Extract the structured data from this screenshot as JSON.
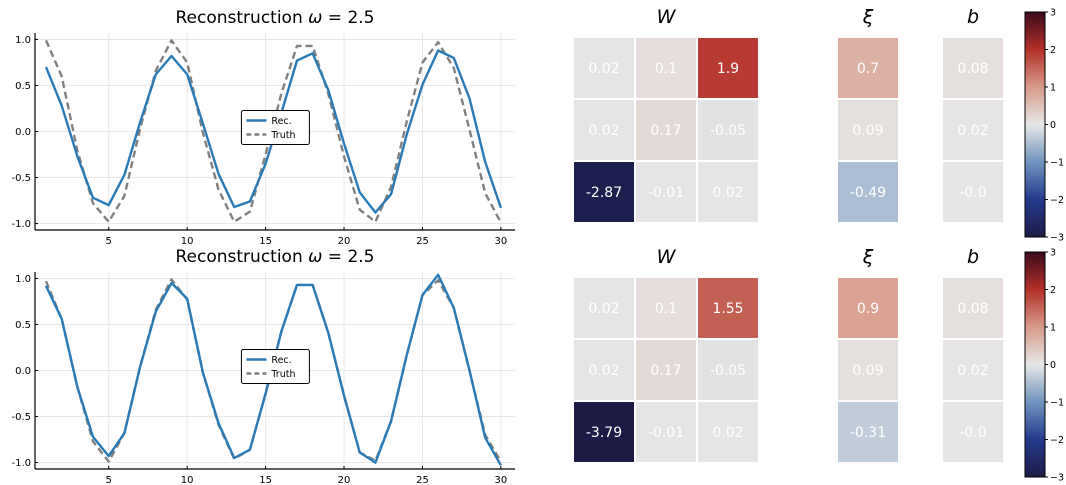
{
  "colors": {
    "rec": "#2a7ab7",
    "truth": "#808080",
    "grid": "#e8e8e8",
    "axis": "#000000",
    "cell_text": "#ffffff",
    "colorbar_stops": [
      "#1c1b46",
      "#243a8c",
      "#6f95c0",
      "#e6e6e6",
      "#d79a88",
      "#b3302a",
      "#3c0a1a"
    ]
  },
  "chart_data": [
    {
      "type": "line",
      "title": "Reconstruction ω = 2.5",
      "title_parts": [
        "Reconstruction ",
        "ω",
        " = 2.5"
      ],
      "xlim": [
        0.3,
        30.9
      ],
      "ylim": [
        -1.07,
        1.07
      ],
      "xticks": [
        5,
        10,
        15,
        20,
        25,
        30
      ],
      "xtick_labels": [
        "5",
        "10",
        "15",
        "20",
        "25",
        "30"
      ],
      "yticks": [
        -1.0,
        -0.5,
        0.0,
        0.5,
        1.0
      ],
      "ytick_labels": [
        "-1.0",
        "-0.5",
        "0.0",
        "0.5",
        "1.0"
      ],
      "grid": true,
      "legend_position": "center",
      "x": [
        1,
        2,
        3,
        4,
        5,
        6,
        7,
        8,
        9,
        10,
        11,
        12,
        13,
        14,
        15,
        16,
        17,
        18,
        19,
        20,
        21,
        22,
        23,
        24,
        25,
        26,
        27,
        28,
        29,
        30
      ],
      "series": [
        {
          "name": "Rec.",
          "style": "solid",
          "values": [
            0.7,
            0.28,
            -0.27,
            -0.72,
            -0.8,
            -0.47,
            0.1,
            0.62,
            0.82,
            0.62,
            0.09,
            -0.46,
            -0.82,
            -0.76,
            -0.35,
            0.2,
            0.77,
            0.85,
            0.45,
            -0.13,
            -0.66,
            -0.88,
            -0.68,
            -0.03,
            0.51,
            0.88,
            0.8,
            0.36,
            -0.33,
            -0.83
          ]
        },
        {
          "name": "Truth",
          "style": "dashed",
          "values": [
            0.99,
            0.6,
            -0.21,
            -0.78,
            -0.98,
            -0.7,
            0.03,
            0.66,
            0.99,
            0.75,
            -0.01,
            -0.63,
            -0.98,
            -0.87,
            -0.25,
            0.41,
            0.93,
            0.93,
            0.41,
            -0.27,
            -0.85,
            -0.98,
            -0.6,
            0.11,
            0.75,
            0.97,
            0.69,
            0.02,
            -0.67,
            -0.99
          ]
        }
      ]
    },
    {
      "type": "line",
      "title": "Reconstruction ω = 2.5",
      "title_parts": [
        "Reconstruction ",
        "ω",
        " = 2.5"
      ],
      "xlim": [
        0.3,
        30.9
      ],
      "ylim": [
        -1.07,
        1.07
      ],
      "xticks": [
        5,
        10,
        15,
        20,
        25,
        30
      ],
      "xtick_labels": [
        "5",
        "10",
        "15",
        "20",
        "25",
        "30"
      ],
      "yticks": [
        -1.0,
        -0.5,
        0.0,
        0.5,
        1.0
      ],
      "ytick_labels": [
        "-1.0",
        "-0.5",
        "0.0",
        "0.5",
        "1.0"
      ],
      "grid": true,
      "legend_position": "center",
      "x": [
        1,
        2,
        3,
        4,
        5,
        6,
        7,
        8,
        9,
        10,
        11,
        12,
        13,
        14,
        15,
        16,
        17,
        18,
        19,
        20,
        21,
        22,
        23,
        24,
        25,
        26,
        27,
        28,
        29,
        30
      ],
      "series": [
        {
          "name": "Rec.",
          "style": "solid",
          "values": [
            0.92,
            0.56,
            -0.18,
            -0.72,
            -0.93,
            -0.68,
            0.04,
            0.64,
            0.95,
            0.78,
            -0.02,
            -0.57,
            -0.95,
            -0.86,
            -0.25,
            0.42,
            0.93,
            0.93,
            0.41,
            -0.27,
            -0.89,
            -1.0,
            -0.55,
            0.17,
            0.82,
            1.04,
            0.68,
            0.0,
            -0.73,
            -1.03
          ]
        },
        {
          "name": "Truth",
          "style": "dashed",
          "values": [
            0.97,
            0.56,
            -0.18,
            -0.77,
            -0.99,
            -0.68,
            0.04,
            0.66,
            0.99,
            0.77,
            -0.02,
            -0.59,
            -0.96,
            -0.86,
            -0.25,
            0.42,
            0.93,
            0.93,
            0.41,
            -0.27,
            -0.89,
            -0.98,
            -0.55,
            0.17,
            0.82,
            0.98,
            0.68,
            0.0,
            -0.7,
            -0.99
          ]
        }
      ]
    },
    {
      "type": "heatmap",
      "panels": [
        {
          "title": "W",
          "rows": 3,
          "cols": 3,
          "values": [
            [
              0.02,
              0.1,
              1.9
            ],
            [
              0.02,
              0.17,
              -0.05
            ],
            [
              -2.87,
              -0.01,
              0.02
            ]
          ],
          "labels": [
            [
              "0.02",
              "0.1",
              "1.9"
            ],
            [
              "0.02",
              "0.17",
              "-0.05"
            ],
            [
              "-2.87",
              "-0.01",
              "0.02"
            ]
          ]
        },
        {
          "title": "ξ",
          "rows": 3,
          "cols": 1,
          "values": [
            [
              0.7
            ],
            [
              0.09
            ],
            [
              -0.49
            ]
          ],
          "labels": [
            [
              "0.7"
            ],
            [
              "0.09"
            ],
            [
              "-0.49"
            ]
          ]
        },
        {
          "title": "b",
          "rows": 3,
          "cols": 1,
          "values": [
            [
              0.08
            ],
            [
              0.02
            ],
            [
              -0.0
            ]
          ],
          "labels": [
            [
              "0.08"
            ],
            [
              "0.02"
            ],
            [
              "-0.0"
            ]
          ]
        }
      ],
      "colorbar": {
        "range": [
          -3,
          3
        ],
        "ticks": [
          -3,
          -2,
          -1,
          0,
          1,
          2,
          3
        ],
        "tick_labels": [
          "−3",
          "−2",
          "−1",
          "0",
          "1",
          "2",
          "3"
        ]
      }
    },
    {
      "type": "heatmap",
      "panels": [
        {
          "title": "W",
          "rows": 3,
          "cols": 3,
          "values": [
            [
              0.02,
              0.1,
              1.55
            ],
            [
              0.02,
              0.17,
              -0.05
            ],
            [
              -3.79,
              -0.01,
              0.02
            ]
          ],
          "labels": [
            [
              "0.02",
              "0.1",
              "1.55"
            ],
            [
              "0.02",
              "0.17",
              "-0.05"
            ],
            [
              "-3.79",
              "-0.01",
              "0.02"
            ]
          ]
        },
        {
          "title": "ξ",
          "rows": 3,
          "cols": 1,
          "values": [
            [
              0.9
            ],
            [
              0.09
            ],
            [
              -0.31
            ]
          ],
          "labels": [
            [
              "0.9"
            ],
            [
              "0.09"
            ],
            [
              "-0.31"
            ]
          ]
        },
        {
          "title": "b",
          "rows": 3,
          "cols": 1,
          "values": [
            [
              0.08
            ],
            [
              0.02
            ],
            [
              -0.0
            ]
          ],
          "labels": [
            [
              "0.08"
            ],
            [
              "0.02"
            ],
            [
              "-0.0"
            ]
          ]
        }
      ],
      "colorbar": {
        "range": [
          -3,
          3
        ],
        "ticks": [
          -3,
          -2,
          -1,
          0,
          1,
          2,
          3
        ],
        "tick_labels": [
          "−3",
          "−2",
          "−1",
          "0",
          "1",
          "2",
          "3"
        ]
      }
    }
  ]
}
